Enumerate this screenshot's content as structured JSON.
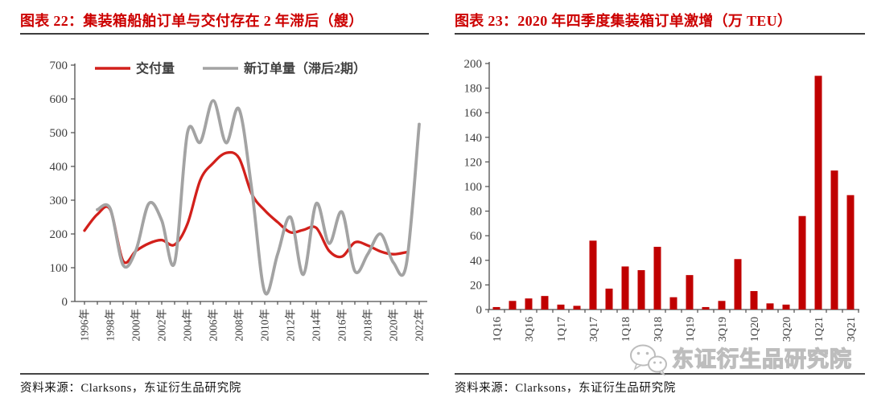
{
  "figures": [
    {
      "title": "图表 22：集装箱船舶订单与交付存在 2 年滞后（艘）",
      "source": "资料来源：Clarksons，东证衍生品研究院"
    },
    {
      "title": "图表 23：2020 年四季度集装箱订单激增（万 TEU）",
      "source": "资料来源：Clarksons，东证衍生品研究院"
    }
  ],
  "watermark": {
    "icon": "wechat-icon",
    "text": "东证衍生品研究院"
  },
  "colors": {
    "title_red": "#cc0000",
    "delivery_line_red": "#d2201b",
    "orders_line_gray": "#a3a3a3",
    "bar_red": "#c00000",
    "axis_text": "#3d3d3d",
    "axis_line": "#4d4d4d",
    "rule_dark": "#3d3d3d"
  },
  "chart_data": [
    {
      "type": "line",
      "title": "集装箱船舶订单与交付存在 2 年滞后",
      "unit": "艘",
      "ylim": [
        0,
        700
      ],
      "y_ticks": [
        0,
        100,
        200,
        300,
        400,
        500,
        600,
        700
      ],
      "x_start_year": 1996,
      "x_end_year": 2022,
      "x_tick_labels": [
        "1996年",
        "1998年",
        "2000年",
        "2002年",
        "2004年",
        "2006年",
        "2008年",
        "2010年",
        "2012年",
        "2014年",
        "2016年",
        "2018年",
        "2020年",
        "2022年"
      ],
      "legend_position": "top",
      "grid": false,
      "series": [
        {
          "name": "交付量",
          "color": "#d2201b",
          "start_year": 1996,
          "values": [
            210,
            258,
            272,
            120,
            150,
            172,
            182,
            168,
            230,
            360,
            410,
            440,
            425,
            318,
            270,
            235,
            205,
            212,
            218,
            150,
            133,
            175,
            166,
            148,
            140,
            146
          ]
        },
        {
          "name": "新订单量（滞后2期）",
          "color": "#a3a3a3",
          "start_year": 1997,
          "values": [
            272,
            275,
            108,
            152,
            290,
            240,
            115,
            500,
            472,
            595,
            470,
            570,
            330,
            28,
            140,
            250,
            80,
            290,
            172,
            265,
            90,
            140,
            200,
            115,
            110,
            525
          ]
        }
      ]
    },
    {
      "type": "bar",
      "title": "2020 年四季度集装箱订单激增",
      "unit": "万 TEU",
      "ylim": [
        0,
        200
      ],
      "y_ticks": [
        0,
        20,
        40,
        60,
        80,
        100,
        120,
        140,
        160,
        180,
        200
      ],
      "categories": [
        "1Q16",
        "2Q16",
        "3Q16",
        "4Q16",
        "1Q17",
        "2Q17",
        "3Q17",
        "4Q17",
        "1Q18",
        "2Q18",
        "3Q18",
        "4Q18",
        "1Q19",
        "2Q19",
        "3Q19",
        "4Q19",
        "1Q20",
        "2Q20",
        "3Q20",
        "4Q20",
        "1Q21",
        "2Q21",
        "3Q21"
      ],
      "values": [
        2,
        7,
        9,
        11,
        4,
        3,
        56,
        17,
        35,
        32,
        51,
        10,
        28,
        2,
        7,
        41,
        15,
        5,
        4,
        76,
        190,
        113,
        93
      ],
      "x_label_every": 2,
      "bar_color": "#c00000",
      "grid": false
    }
  ]
}
